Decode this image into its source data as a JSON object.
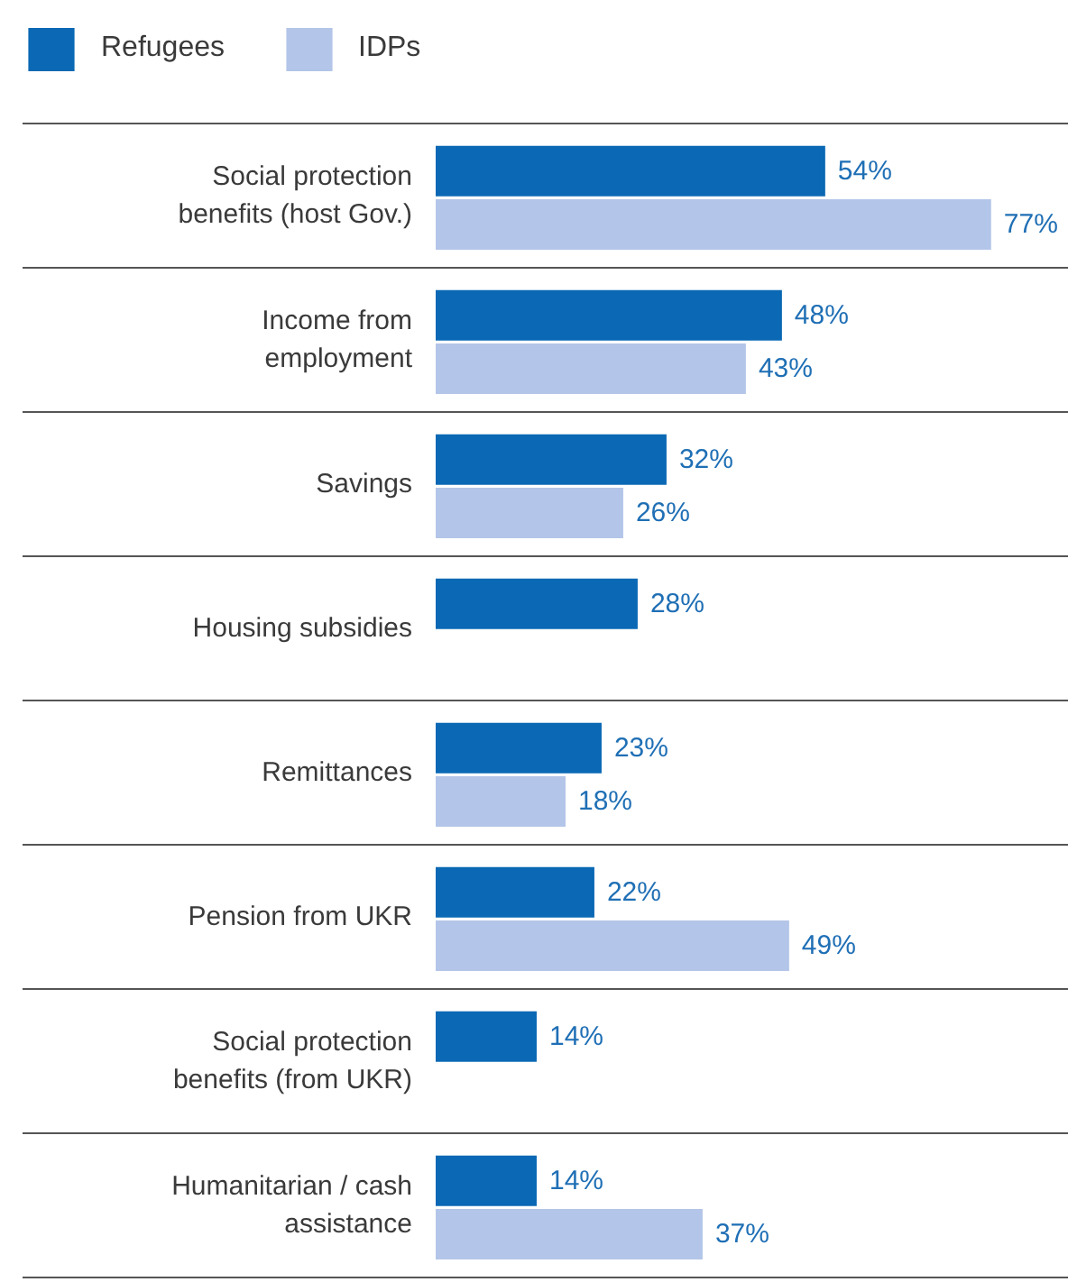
{
  "chart_data": {
    "type": "bar",
    "orientation": "horizontal",
    "legend": "top left",
    "categories": [
      "Social protection benefits (host Gov.)",
      "Income from employment",
      "Savings",
      "Housing subsidies",
      "Remittances",
      "Pension from UKR",
      "Social protection benefits (from UKR)",
      "Humanitarian / cash assistance"
    ],
    "series": [
      {
        "name": "Refugees",
        "color": "#0a68b4",
        "values": [
          54,
          48,
          32,
          28,
          23,
          22,
          14,
          14
        ],
        "value_labels": [
          "54%",
          "48%",
          "32%",
          "28%",
          "23%",
          "22%",
          "14%",
          "14%"
        ]
      },
      {
        "name": "IDPs",
        "color": "#b3c5e8",
        "values": [
          77,
          43,
          26,
          null,
          18,
          49,
          null,
          37
        ],
        "value_labels": [
          "77%",
          "43%",
          "26%",
          null,
          "18%",
          "49%",
          null,
          "37%"
        ]
      }
    ]
  }
}
